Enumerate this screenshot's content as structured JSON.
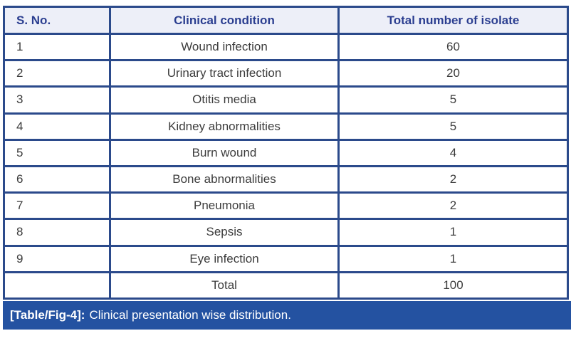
{
  "table": {
    "columns": [
      "S. No.",
      "Clinical condition",
      "Total number of isolate"
    ],
    "rows": [
      {
        "sno": "1",
        "condition": "Wound infection",
        "count": "60"
      },
      {
        "sno": "2",
        "condition": "Urinary tract infection",
        "count": "20"
      },
      {
        "sno": "3",
        "condition": "Otitis media",
        "count": "5"
      },
      {
        "sno": "4",
        "condition": "Kidney abnormalities",
        "count": "5"
      },
      {
        "sno": "5",
        "condition": "Burn wound",
        "count": "4"
      },
      {
        "sno": "6",
        "condition": "Bone abnormalities",
        "count": "2"
      },
      {
        "sno": "7",
        "condition": "Pneumonia",
        "count": "2"
      },
      {
        "sno": "8",
        "condition": "Sepsis",
        "count": "1"
      },
      {
        "sno": "9",
        "condition": "Eye infection",
        "count": "1"
      },
      {
        "sno": "",
        "condition": "Total",
        "count": "100"
      }
    ]
  },
  "caption": {
    "label": "[Table/Fig-4]:",
    "text": "Clinical presentation wise distribution."
  },
  "colors": {
    "border": "#2b4a8b",
    "header_bg": "#edeff8",
    "header_text": "#2b3e90",
    "body_text": "#3c3c3c",
    "caption_bg": "#2452a1",
    "caption_text": "#ffffff"
  }
}
